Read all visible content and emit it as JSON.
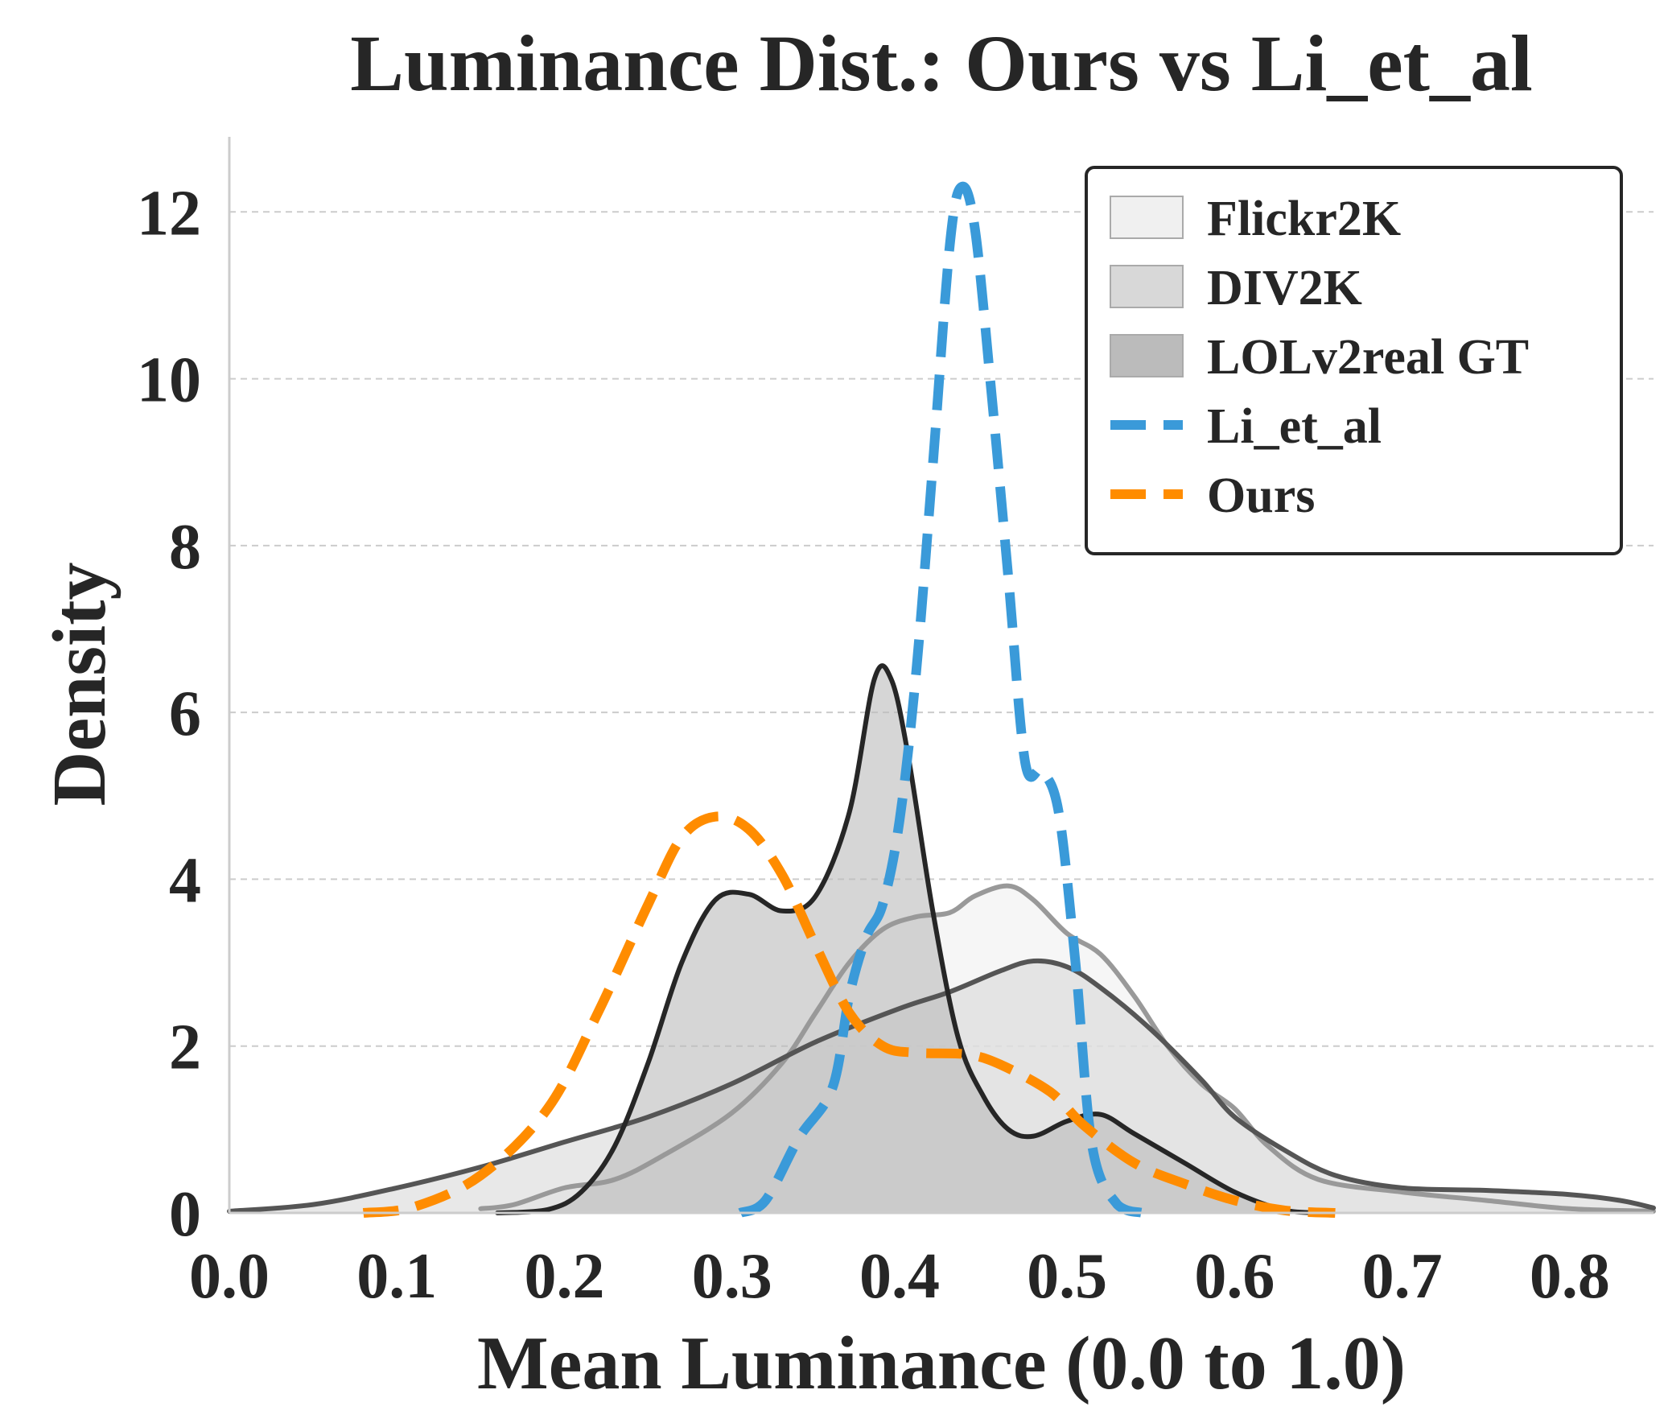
{
  "chart_data": {
    "type": "area",
    "title": "Luminance Dist.: Ours vs Li_et_al",
    "xlabel": "Mean Luminance (0.0 to 1.0)",
    "ylabel": "Density",
    "xlim": [
      0.0,
      0.85
    ],
    "ylim": [
      0,
      12.9
    ],
    "xticks": [
      0.0,
      0.1,
      0.2,
      0.3,
      0.4,
      0.5,
      0.6,
      0.7,
      0.8
    ],
    "xtick_labels": [
      "0.0",
      "0.1",
      "0.2",
      "0.3",
      "0.4",
      "0.5",
      "0.6",
      "0.7",
      "0.8"
    ],
    "yticks": [
      0,
      2,
      4,
      6,
      8,
      10,
      12
    ],
    "ytick_labels": [
      "0",
      "2",
      "4",
      "6",
      "8",
      "10",
      "12"
    ],
    "grid": "horizontal dashed",
    "legend_position": "top-right",
    "series": [
      {
        "name": "Flickr2K",
        "style": "filled",
        "fill": "#f0f0f0",
        "stroke": "#999999",
        "points": [
          [
            0.15,
            0.05
          ],
          [
            0.17,
            0.1
          ],
          [
            0.2,
            0.3
          ],
          [
            0.23,
            0.4
          ],
          [
            0.26,
            0.7
          ],
          [
            0.3,
            1.2
          ],
          [
            0.33,
            1.8
          ],
          [
            0.35,
            2.4
          ],
          [
            0.37,
            3.0
          ],
          [
            0.39,
            3.4
          ],
          [
            0.41,
            3.55
          ],
          [
            0.43,
            3.6
          ],
          [
            0.445,
            3.8
          ],
          [
            0.465,
            3.92
          ],
          [
            0.48,
            3.75
          ],
          [
            0.5,
            3.35
          ],
          [
            0.52,
            3.1
          ],
          [
            0.54,
            2.6
          ],
          [
            0.56,
            2.0
          ],
          [
            0.58,
            1.55
          ],
          [
            0.6,
            1.25
          ],
          [
            0.62,
            0.8
          ],
          [
            0.65,
            0.4
          ],
          [
            0.7,
            0.25
          ],
          [
            0.75,
            0.15
          ],
          [
            0.8,
            0.05
          ],
          [
            0.85,
            0.02
          ]
        ]
      },
      {
        "name": "DIV2K",
        "style": "filled",
        "fill": "#d8d8d8",
        "stroke": "#555555",
        "points": [
          [
            0.0,
            0.02
          ],
          [
            0.05,
            0.1
          ],
          [
            0.1,
            0.3
          ],
          [
            0.15,
            0.55
          ],
          [
            0.2,
            0.85
          ],
          [
            0.25,
            1.15
          ],
          [
            0.3,
            1.55
          ],
          [
            0.35,
            2.05
          ],
          [
            0.4,
            2.45
          ],
          [
            0.43,
            2.65
          ],
          [
            0.46,
            2.9
          ],
          [
            0.48,
            3.02
          ],
          [
            0.5,
            2.95
          ],
          [
            0.52,
            2.7
          ],
          [
            0.55,
            2.2
          ],
          [
            0.58,
            1.6
          ],
          [
            0.6,
            1.15
          ],
          [
            0.63,
            0.75
          ],
          [
            0.66,
            0.45
          ],
          [
            0.7,
            0.3
          ],
          [
            0.75,
            0.27
          ],
          [
            0.8,
            0.22
          ],
          [
            0.83,
            0.15
          ],
          [
            0.85,
            0.06
          ]
        ]
      },
      {
        "name": "LOLv2real GT",
        "style": "filled",
        "fill": "#bbbbbb",
        "stroke": "#262626",
        "points": [
          [
            0.16,
            0.0
          ],
          [
            0.19,
            0.04
          ],
          [
            0.21,
            0.25
          ],
          [
            0.23,
            0.8
          ],
          [
            0.25,
            1.8
          ],
          [
            0.27,
            3.0
          ],
          [
            0.29,
            3.75
          ],
          [
            0.31,
            3.82
          ],
          [
            0.33,
            3.62
          ],
          [
            0.35,
            3.8
          ],
          [
            0.37,
            4.8
          ],
          [
            0.385,
            6.4
          ],
          [
            0.395,
            6.4
          ],
          [
            0.405,
            5.5
          ],
          [
            0.42,
            3.6
          ],
          [
            0.435,
            2.1
          ],
          [
            0.45,
            1.4
          ],
          [
            0.465,
            1.0
          ],
          [
            0.48,
            0.92
          ],
          [
            0.5,
            1.1
          ],
          [
            0.52,
            1.18
          ],
          [
            0.54,
            0.95
          ],
          [
            0.57,
            0.6
          ],
          [
            0.6,
            0.25
          ],
          [
            0.63,
            0.03
          ],
          [
            0.65,
            0.0
          ]
        ]
      },
      {
        "name": "Li_et_al",
        "style": "dashed",
        "stroke": "#3a9ad9",
        "points": [
          [
            0.305,
            0.0
          ],
          [
            0.32,
            0.15
          ],
          [
            0.34,
            0.9
          ],
          [
            0.36,
            1.5
          ],
          [
            0.37,
            2.6
          ],
          [
            0.38,
            3.3
          ],
          [
            0.39,
            3.7
          ],
          [
            0.4,
            4.7
          ],
          [
            0.41,
            6.5
          ],
          [
            0.42,
            9.0
          ],
          [
            0.43,
            11.6
          ],
          [
            0.437,
            12.3
          ],
          [
            0.445,
            11.8
          ],
          [
            0.455,
            9.8
          ],
          [
            0.465,
            7.6
          ],
          [
            0.475,
            5.4
          ],
          [
            0.485,
            5.3
          ],
          [
            0.495,
            4.8
          ],
          [
            0.505,
            3.0
          ],
          [
            0.515,
            0.8
          ],
          [
            0.53,
            0.1
          ],
          [
            0.545,
            0.0
          ]
        ]
      },
      {
        "name": "Ours",
        "style": "dashed",
        "stroke": "#ff8c00",
        "points": [
          [
            0.08,
            0.0
          ],
          [
            0.11,
            0.07
          ],
          [
            0.15,
            0.45
          ],
          [
            0.19,
            1.25
          ],
          [
            0.22,
            2.4
          ],
          [
            0.25,
            3.7
          ],
          [
            0.27,
            4.5
          ],
          [
            0.29,
            4.75
          ],
          [
            0.31,
            4.6
          ],
          [
            0.33,
            4.05
          ],
          [
            0.35,
            3.2
          ],
          [
            0.37,
            2.4
          ],
          [
            0.39,
            2.0
          ],
          [
            0.41,
            1.92
          ],
          [
            0.44,
            1.9
          ],
          [
            0.46,
            1.78
          ],
          [
            0.49,
            1.45
          ],
          [
            0.51,
            1.05
          ],
          [
            0.54,
            0.6
          ],
          [
            0.57,
            0.35
          ],
          [
            0.6,
            0.15
          ],
          [
            0.63,
            0.03
          ],
          [
            0.66,
            0.0
          ]
        ]
      }
    ]
  }
}
